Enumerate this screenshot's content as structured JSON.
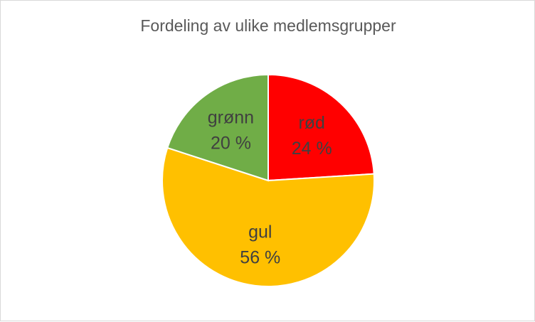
{
  "chart_data": {
    "type": "pie",
    "title": "Fordeling av ulike medlemsgrupper",
    "start_angle": "top, clockwise",
    "slices": [
      {
        "label": "rød",
        "value": 24,
        "value_label": "24 %",
        "color": "#FF0000"
      },
      {
        "label": "gul",
        "value": 56,
        "value_label": "56 %",
        "color": "#FFC000"
      },
      {
        "label": "grønn",
        "value": 20,
        "value_label": "20 %",
        "color": "#70AD47"
      }
    ],
    "legend": "none"
  }
}
